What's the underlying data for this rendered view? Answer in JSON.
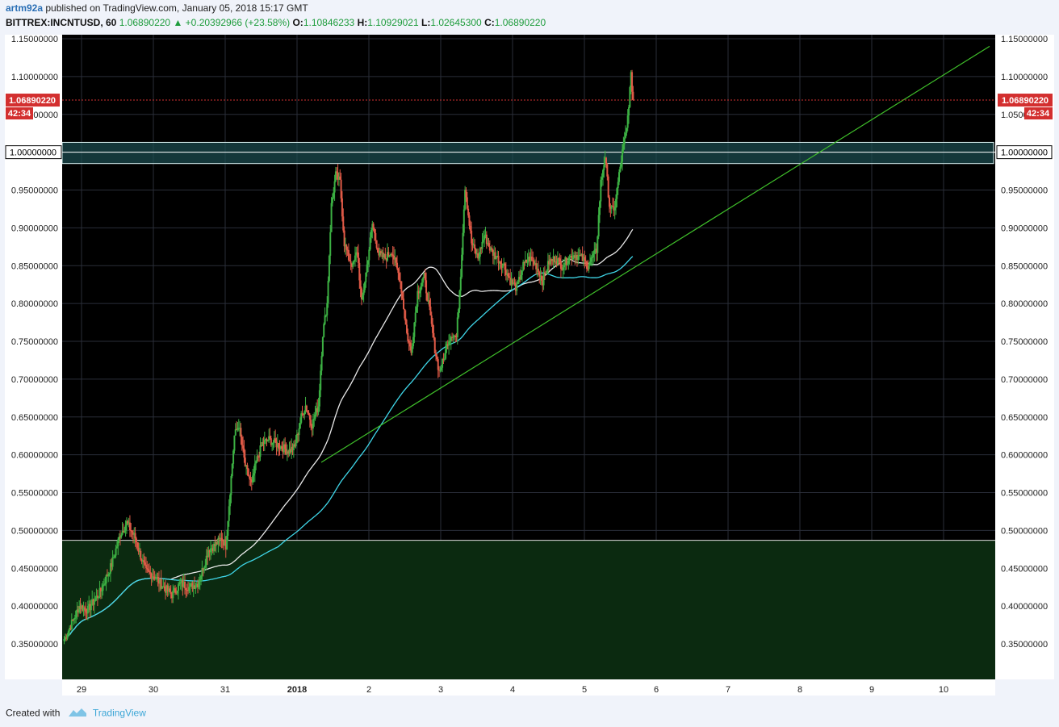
{
  "header": {
    "author": "artm92a",
    "published_text": "published on TradingView.com, January 05, 2018 15:17 GMT",
    "symbol": "BITTREX:INCNTUSD, 60",
    "last": "1.06890220",
    "change": "+0.20392966 (+23.58%)",
    "o_label": "O:",
    "o": "1.10846233",
    "h_label": "H:",
    "h": "1.10929021",
    "l_label": "L:",
    "l": "1.02645300",
    "c_label": "C:",
    "c": "1.06890220"
  },
  "footer": {
    "created_with": "Created with",
    "brand": "TradingView"
  },
  "colors": {
    "up": "#3cb043",
    "down": "#e05a47",
    "ma_fast": "#e8e8e8",
    "ma_slow": "#3fd6e8",
    "trend": "#3fbf2a",
    "price_badge": "#d32f2f"
  },
  "chart_data": {
    "type": "candlestick",
    "ylim": [
      0.3,
      1.15
    ],
    "y_ticks": [
      "1.15000000",
      "1.10000000",
      "1.05000000",
      "1.00000000",
      "0.95000000",
      "0.90000000",
      "0.85000000",
      "0.80000000",
      "0.75000000",
      "0.70000000",
      "0.65000000",
      "0.60000000",
      "0.55000000",
      "0.50000000",
      "0.45000000",
      "0.40000000",
      "0.35000000"
    ],
    "x_ticks": [
      "29",
      "30",
      "31",
      "2018",
      "2",
      "3",
      "4",
      "5",
      "6",
      "7",
      "8",
      "9",
      "10"
    ],
    "last_price_label": "1.06890220",
    "countdown": "42:34",
    "level_label": "1.00000000",
    "trend_line": {
      "from_price": 0.59,
      "to_price": 1.14
    },
    "resistance_zone": [
      0.985,
      1.013
    ],
    "support_zone_top": 0.487,
    "candle_path": [
      [
        0,
        0.355
      ],
      [
        14,
        0.4
      ],
      [
        22,
        0.395
      ],
      [
        34,
        0.42
      ],
      [
        44,
        0.455
      ],
      [
        52,
        0.495
      ],
      [
        58,
        0.51
      ],
      [
        66,
        0.49
      ],
      [
        70,
        0.47
      ],
      [
        76,
        0.445
      ],
      [
        84,
        0.44
      ],
      [
        92,
        0.425
      ],
      [
        100,
        0.415
      ],
      [
        108,
        0.43
      ],
      [
        116,
        0.425
      ],
      [
        124,
        0.43
      ],
      [
        130,
        0.455
      ],
      [
        134,
        0.475
      ],
      [
        140,
        0.48
      ],
      [
        146,
        0.49
      ],
      [
        150,
        0.48
      ],
      [
        158,
        0.625
      ],
      [
        162,
        0.64
      ],
      [
        168,
        0.585
      ],
      [
        174,
        0.56
      ],
      [
        178,
        0.59
      ],
      [
        184,
        0.615
      ],
      [
        190,
        0.62
      ],
      [
        196,
        0.615
      ],
      [
        202,
        0.61
      ],
      [
        208,
        0.605
      ],
      [
        214,
        0.61
      ],
      [
        220,
        0.65
      ],
      [
        224,
        0.665
      ],
      [
        230,
        0.64
      ],
      [
        236,
        0.665
      ],
      [
        240,
        0.76
      ],
      [
        244,
        0.8
      ],
      [
        248,
        0.93
      ],
      [
        252,
        0.97
      ],
      [
        256,
        0.96
      ],
      [
        260,
        0.88
      ],
      [
        264,
        0.86
      ],
      [
        268,
        0.85
      ],
      [
        272,
        0.87
      ],
      [
        276,
        0.8
      ],
      [
        280,
        0.84
      ],
      [
        286,
        0.905
      ],
      [
        292,
        0.865
      ],
      [
        298,
        0.86
      ],
      [
        304,
        0.87
      ],
      [
        308,
        0.85
      ],
      [
        312,
        0.83
      ],
      [
        318,
        0.76
      ],
      [
        322,
        0.735
      ],
      [
        328,
        0.815
      ],
      [
        334,
        0.835
      ],
      [
        338,
        0.8
      ],
      [
        344,
        0.74
      ],
      [
        348,
        0.71
      ],
      [
        352,
        0.725
      ],
      [
        356,
        0.75
      ],
      [
        360,
        0.76
      ],
      [
        364,
        0.755
      ],
      [
        368,
        0.84
      ],
      [
        372,
        0.955
      ],
      [
        378,
        0.88
      ],
      [
        384,
        0.86
      ],
      [
        390,
        0.89
      ],
      [
        396,
        0.87
      ],
      [
        402,
        0.86
      ],
      [
        408,
        0.85
      ],
      [
        414,
        0.83
      ],
      [
        420,
        0.82
      ],
      [
        426,
        0.85
      ],
      [
        432,
        0.86
      ],
      [
        438,
        0.85
      ],
      [
        444,
        0.83
      ],
      [
        450,
        0.855
      ],
      [
        456,
        0.86
      ],
      [
        462,
        0.85
      ],
      [
        468,
        0.86
      ],
      [
        474,
        0.865
      ],
      [
        480,
        0.86
      ],
      [
        486,
        0.85
      ],
      [
        490,
        0.86
      ],
      [
        494,
        0.87
      ],
      [
        498,
        0.96
      ],
      [
        502,
        0.995
      ],
      [
        506,
        0.93
      ],
      [
        510,
        0.92
      ],
      [
        514,
        0.96
      ],
      [
        518,
        1.0
      ],
      [
        522,
        1.03
      ],
      [
        526,
        1.1
      ],
      [
        528,
        1.069
      ]
    ]
  }
}
